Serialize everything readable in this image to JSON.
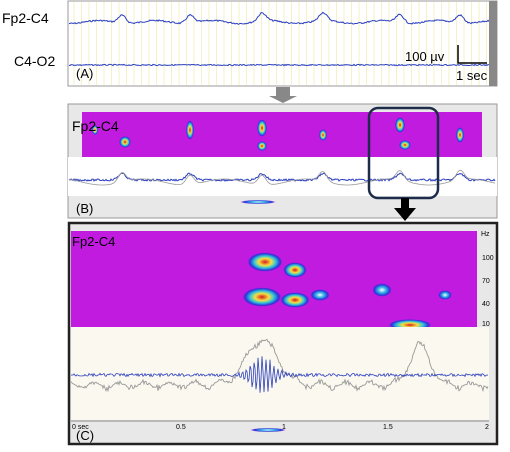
{
  "panel_a": {
    "channel_1": "Fp2-C4",
    "channel_2": "C4-O2",
    "amplitude_scale": "100 µv",
    "time_scale": "1 sec",
    "label": "(A)"
  },
  "panel_b": {
    "channel": "Fp2-C4",
    "label": "(B)"
  },
  "panel_c": {
    "channel": "Fp2-C4",
    "label": "(C)",
    "freq_unit": "Hz",
    "freq_ticks": [
      "100",
      "70",
      "40",
      "10"
    ],
    "time_ticks": [
      "0 sec",
      "0.5",
      "1",
      "1.5",
      "2"
    ]
  }
}
